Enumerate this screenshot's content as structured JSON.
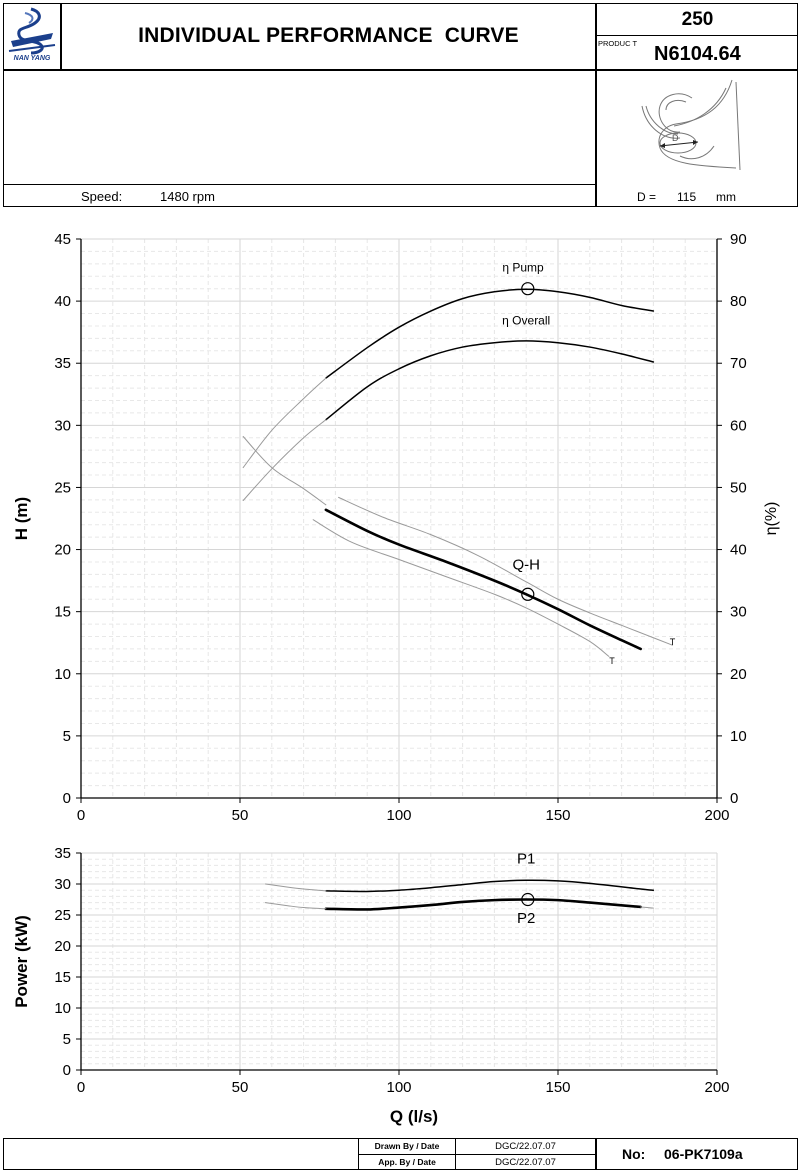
{
  "header": {
    "logo_text": "NAN YANG",
    "title": "INDIVIDUAL PERFORMANCE  CURVE",
    "model_number": "250",
    "product_label": "PRODUC T",
    "product_code": "N6104.64",
    "speed_label": "Speed:",
    "speed_value": "1480 rpm",
    "diameter_label": "D =",
    "diameter_value": "115",
    "diameter_unit": "mm",
    "impeller_d_label": "D"
  },
  "footer": {
    "drawn_label": "Drawn By / Date",
    "drawn_value": "DGC/22.07.07",
    "app_label": "App. By / Date",
    "app_value": "DGC/22.07.07",
    "no_label": "No:",
    "no_value": "06-PK7109a"
  },
  "chart_data": [
    {
      "type": "line",
      "xlim": [
        0,
        200
      ],
      "ylim": [
        0,
        45
      ],
      "y2lim": [
        0,
        90
      ],
      "ylabel": "H (m)",
      "y2label": "η(%)",
      "xticks": [
        0,
        50,
        100,
        150,
        200
      ],
      "yticks": [
        0,
        5,
        10,
        15,
        20,
        25,
        30,
        35,
        40,
        45
      ],
      "y2ticks": [
        0,
        10,
        20,
        30,
        40,
        50,
        60,
        70,
        80,
        90
      ],
      "grid": true,
      "series": [
        {
          "name": "Q-H",
          "axis": "left",
          "style": "bold",
          "x": [
            77,
            90,
            100,
            115,
            130,
            140,
            150,
            160,
            170,
            176
          ],
          "y": [
            23.2,
            21.5,
            20.4,
            19.0,
            17.5,
            16.4,
            15.2,
            13.9,
            12.7,
            12.0
          ]
        },
        {
          "name": "",
          "axis": "left",
          "style": "thin",
          "x": [
            81,
            95,
            110,
            125,
            140,
            150,
            160,
            170,
            180,
            186
          ],
          "y": [
            24.2,
            22.6,
            21.2,
            19.5,
            17.4,
            16.0,
            14.9,
            13.9,
            12.9,
            12.3
          ]
        },
        {
          "name": "",
          "axis": "left",
          "style": "thin",
          "x": [
            73,
            85,
            100,
            115,
            130,
            140,
            150,
            160,
            166
          ],
          "y": [
            22.4,
            20.6,
            19.2,
            17.8,
            16.4,
            15.3,
            14.0,
            12.6,
            11.4
          ]
        },
        {
          "name": "",
          "axis": "left",
          "style": "thin",
          "x": [
            51,
            60,
            70,
            77
          ],
          "y": [
            29.1,
            26.6,
            24.9,
            23.6
          ]
        },
        {
          "name": "η Pump",
          "axis": "right",
          "style": "medium",
          "x": [
            77,
            90,
            100,
            110,
            120,
            130,
            140,
            150,
            160,
            170,
            180
          ],
          "y": [
            67.6,
            72.5,
            75.8,
            78.4,
            80.4,
            81.5,
            81.9,
            81.5,
            80.6,
            79.3,
            78.4
          ]
        },
        {
          "name": "",
          "axis": "right",
          "style": "thin",
          "x": [
            51,
            60,
            70,
            77
          ],
          "y": [
            53.2,
            59.2,
            64.3,
            67.6
          ]
        },
        {
          "name": "η Overall",
          "axis": "right",
          "style": "medium",
          "x": [
            77,
            90,
            100,
            110,
            120,
            130,
            140,
            150,
            160,
            170,
            180
          ],
          "y": [
            60.9,
            66.2,
            69.1,
            71.2,
            72.6,
            73.3,
            73.6,
            73.3,
            72.6,
            71.5,
            70.2
          ]
        },
        {
          "name": "",
          "axis": "right",
          "style": "thin",
          "x": [
            51,
            60,
            70,
            77
          ],
          "y": [
            47.9,
            53.0,
            58.0,
            60.9
          ]
        }
      ],
      "annotations": [
        {
          "text": "η Pump",
          "x": 139,
          "y": 42.4
        },
        {
          "text": "η Overall",
          "x": 140,
          "y": 38.1
        },
        {
          "text": "Q-H",
          "x": 140,
          "y": 18.4
        },
        {
          "text": "T",
          "x": 186,
          "y": 12.3
        },
        {
          "text": "T",
          "x": 167,
          "y": 10.8
        }
      ],
      "markers": [
        {
          "x": 140.5,
          "y": 41.0
        },
        {
          "x": 140.5,
          "y": 16.4
        }
      ]
    },
    {
      "type": "line",
      "xlim": [
        0,
        200
      ],
      "ylim": [
        0,
        35
      ],
      "xlabel": "Q (l/s)",
      "ylabel": "Power (kW)",
      "xticks": [
        0,
        50,
        100,
        150,
        200
      ],
      "yticks": [
        0,
        5,
        10,
        15,
        20,
        25,
        30,
        35
      ],
      "grid": true,
      "series": [
        {
          "name": "P1",
          "style": "medium",
          "x": [
            77,
            90,
            100,
            110,
            120,
            130,
            140,
            150,
            160,
            176,
            180
          ],
          "y": [
            28.9,
            28.8,
            29.0,
            29.4,
            29.9,
            30.4,
            30.6,
            30.5,
            30.1,
            29.2,
            29.0
          ]
        },
        {
          "name": "",
          "style": "thin",
          "x": [
            58,
            65,
            70,
            77
          ],
          "y": [
            30.0,
            29.5,
            29.2,
            28.9
          ]
        },
        {
          "name": "P2",
          "style": "bold",
          "x": [
            77,
            90,
            100,
            110,
            120,
            130,
            140,
            150,
            160,
            176
          ],
          "y": [
            26.0,
            25.9,
            26.2,
            26.6,
            27.1,
            27.4,
            27.5,
            27.4,
            27.0,
            26.3
          ]
        },
        {
          "name": "",
          "style": "thin",
          "x": [
            58,
            65,
            70,
            77
          ],
          "y": [
            27.0,
            26.5,
            26.2,
            26.0
          ]
        },
        {
          "name": "",
          "style": "thin",
          "x": [
            176,
            180
          ],
          "y": [
            26.3,
            26.1
          ]
        }
      ],
      "annotations": [
        {
          "text": "P1",
          "x": 140,
          "y": 33.3
        },
        {
          "text": "P2",
          "x": 140,
          "y": 23.7
        }
      ],
      "markers": [
        {
          "x": 140.5,
          "y": 27.5
        }
      ]
    }
  ]
}
